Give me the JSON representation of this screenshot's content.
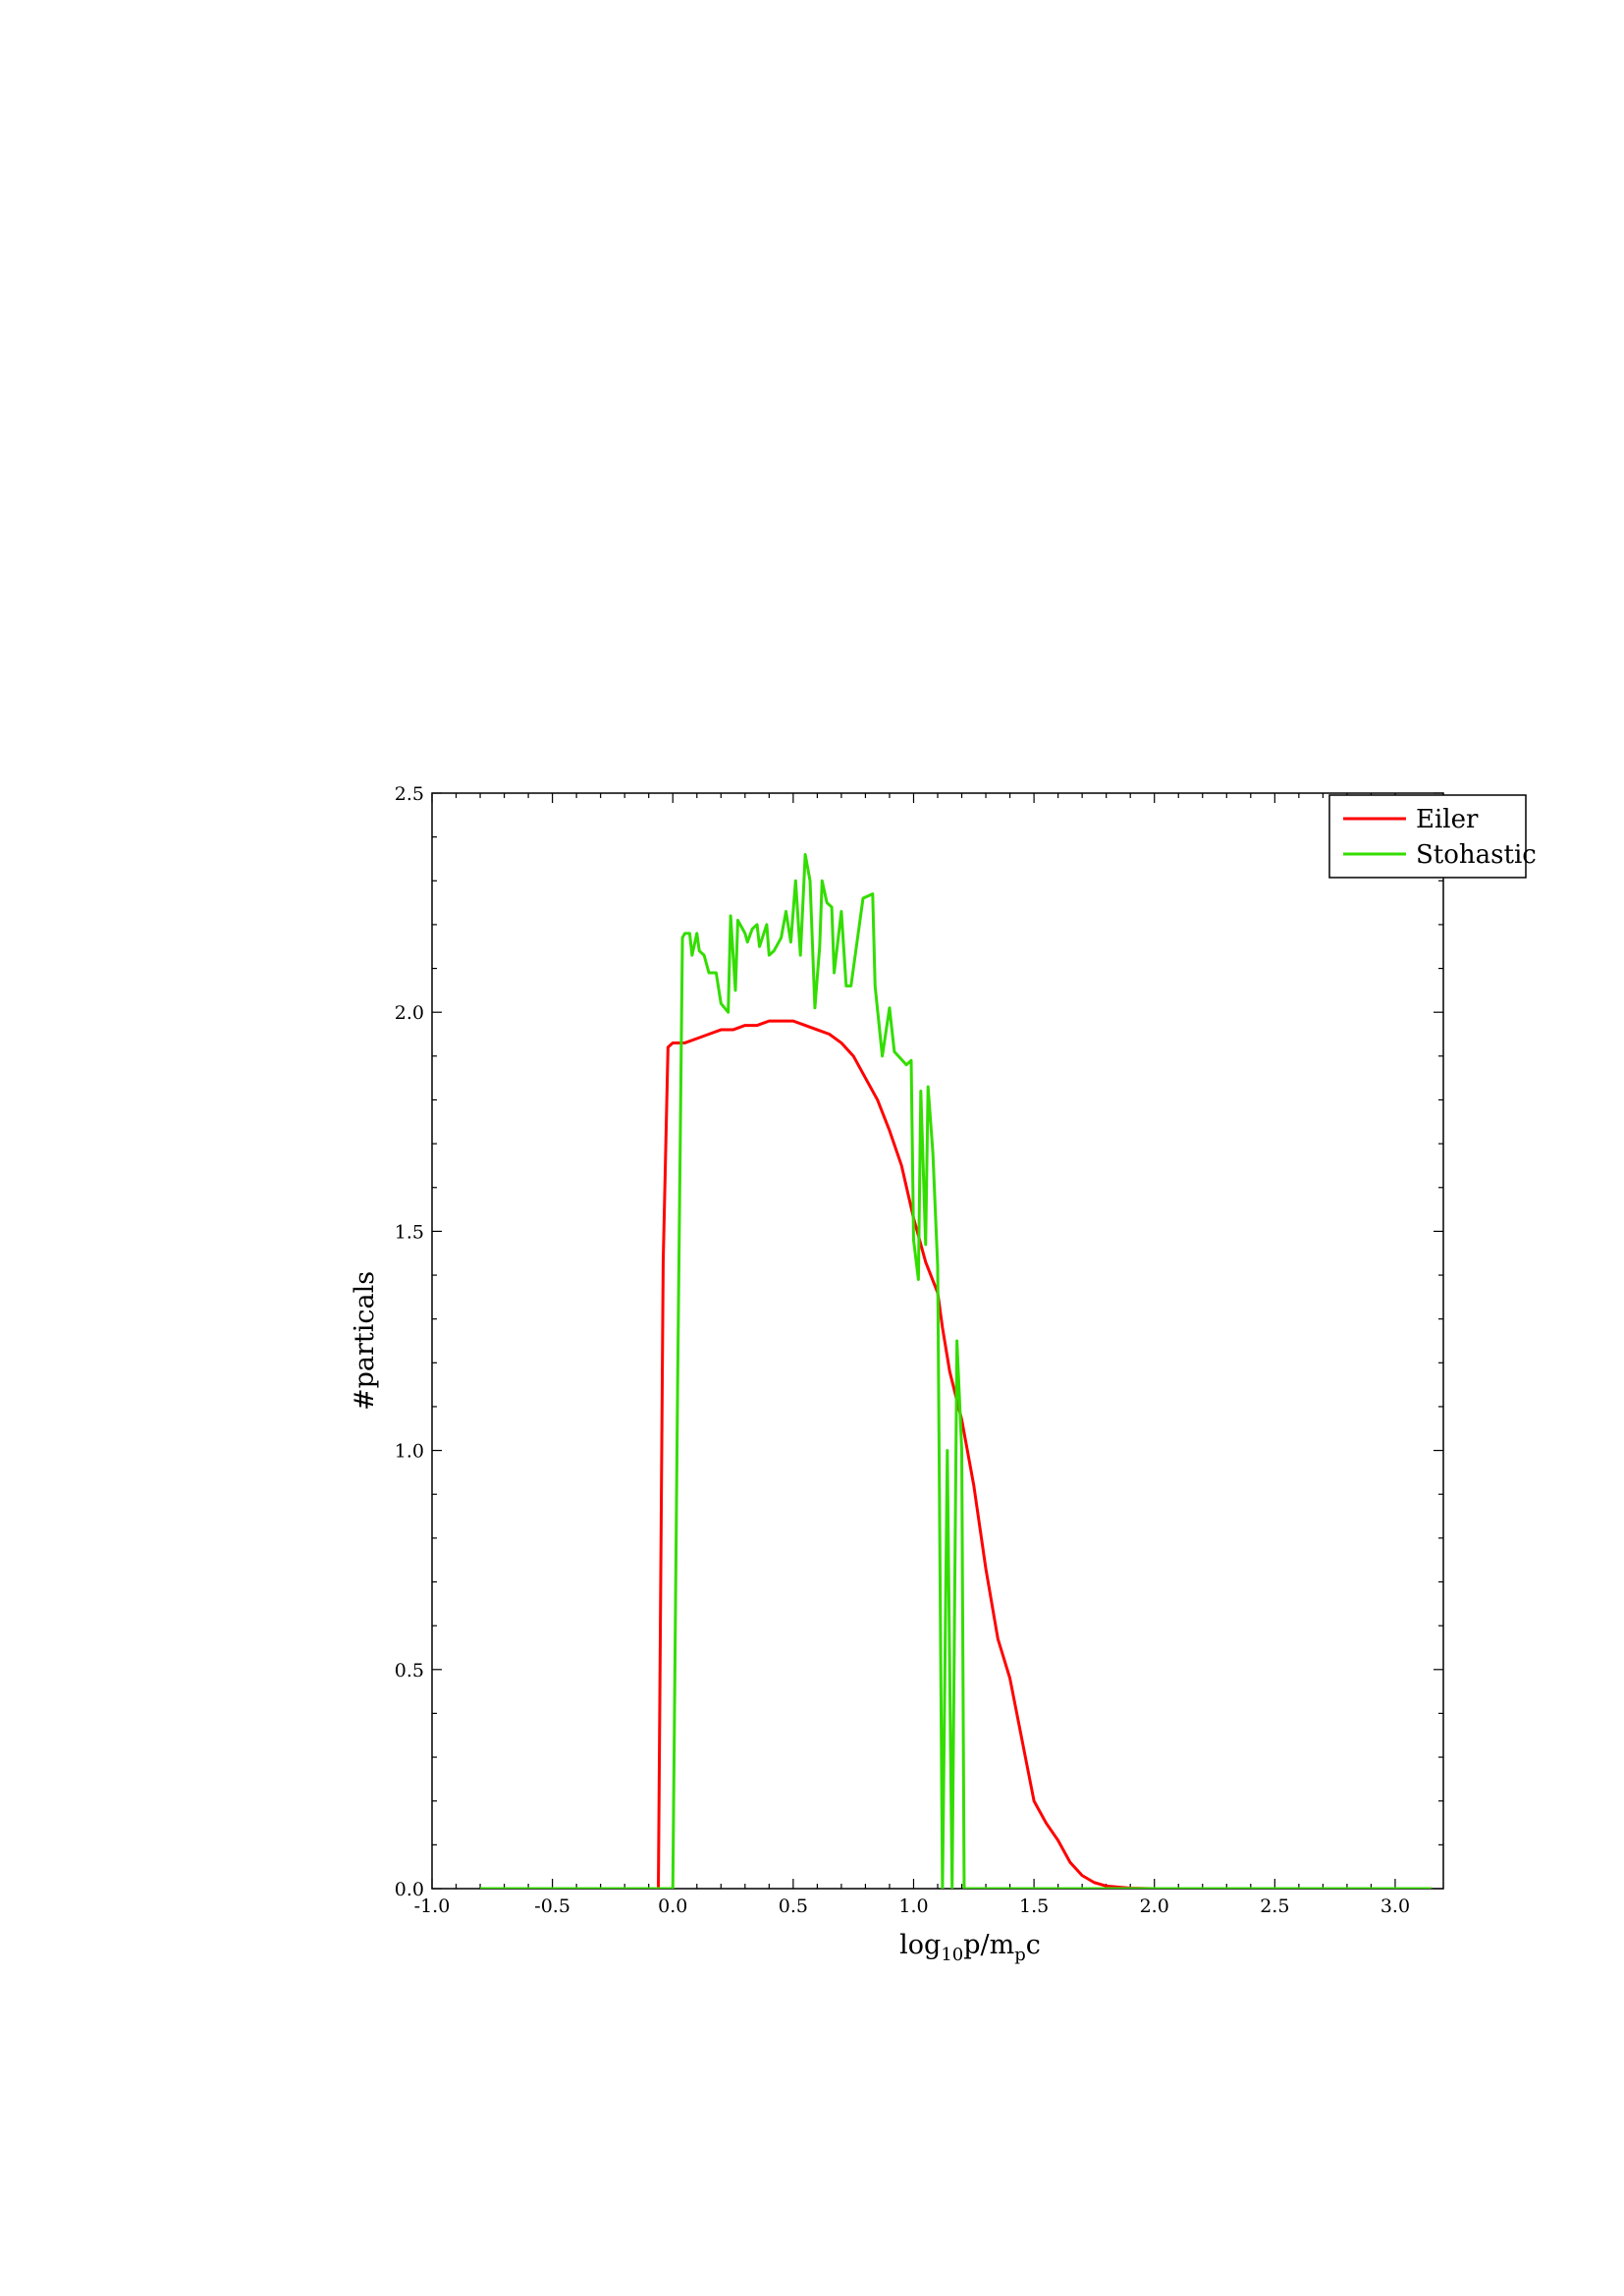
{
  "chart_data": {
    "type": "line",
    "title": "",
    "xlabel_parts": {
      "base": "log",
      "sub1": "10",
      "mid": "p/m",
      "sub2": "p",
      "end": "c"
    },
    "ylabel": "#particals",
    "xlim": [
      -1.0,
      3.2
    ],
    "ylim": [
      0.0,
      2.5
    ],
    "x_ticks": [
      -1.0,
      -0.5,
      0.0,
      0.5,
      1.0,
      1.5,
      2.0,
      2.5,
      3.0
    ],
    "x_tick_labels": [
      "-1.0",
      "-0.5",
      "0.0",
      "0.5",
      "1.0",
      "1.5",
      "2.0",
      "2.5",
      "3.0"
    ],
    "y_ticks": [
      0.0,
      0.5,
      1.0,
      1.5,
      2.0,
      2.5
    ],
    "y_tick_labels": [
      "0.0",
      "0.5",
      "1.0",
      "1.5",
      "2.0",
      "2.5"
    ],
    "grid": false,
    "legend_position": "top-right",
    "series": [
      {
        "name": "Eiler",
        "color": "#ff0000",
        "points": [
          [
            -0.8,
            0.0
          ],
          [
            -0.06,
            0.0
          ],
          [
            -0.04,
            1.43
          ],
          [
            -0.02,
            1.92
          ],
          [
            0.0,
            1.93
          ],
          [
            0.05,
            1.93
          ],
          [
            0.1,
            1.94
          ],
          [
            0.15,
            1.95
          ],
          [
            0.2,
            1.96
          ],
          [
            0.25,
            1.96
          ],
          [
            0.3,
            1.97
          ],
          [
            0.35,
            1.97
          ],
          [
            0.4,
            1.98
          ],
          [
            0.45,
            1.98
          ],
          [
            0.5,
            1.98
          ],
          [
            0.55,
            1.97
          ],
          [
            0.6,
            1.96
          ],
          [
            0.65,
            1.95
          ],
          [
            0.7,
            1.93
          ],
          [
            0.75,
            1.9
          ],
          [
            0.8,
            1.85
          ],
          [
            0.85,
            1.8
          ],
          [
            0.9,
            1.73
          ],
          [
            0.95,
            1.65
          ],
          [
            1.0,
            1.53
          ],
          [
            1.05,
            1.43
          ],
          [
            1.1,
            1.36
          ],
          [
            1.12,
            1.28
          ],
          [
            1.15,
            1.18
          ],
          [
            1.2,
            1.07
          ],
          [
            1.25,
            0.92
          ],
          [
            1.3,
            0.73
          ],
          [
            1.35,
            0.57
          ],
          [
            1.4,
            0.48
          ],
          [
            1.45,
            0.34
          ],
          [
            1.5,
            0.2
          ],
          [
            1.55,
            0.15
          ],
          [
            1.6,
            0.11
          ],
          [
            1.65,
            0.06
          ],
          [
            1.7,
            0.03
          ],
          [
            1.75,
            0.014
          ],
          [
            1.8,
            0.006
          ],
          [
            1.9,
            0.001
          ],
          [
            2.0,
            0.0
          ],
          [
            3.15,
            0.0
          ]
        ]
      },
      {
        "name": "Stohastic",
        "color": "#33dd00",
        "points": [
          [
            -0.8,
            0.0
          ],
          [
            0.0,
            0.0
          ],
          [
            0.02,
            1.15
          ],
          [
            0.04,
            2.17
          ],
          [
            0.05,
            2.18
          ],
          [
            0.07,
            2.18
          ],
          [
            0.08,
            2.13
          ],
          [
            0.1,
            2.18
          ],
          [
            0.11,
            2.14
          ],
          [
            0.13,
            2.13
          ],
          [
            0.15,
            2.09
          ],
          [
            0.18,
            2.09
          ],
          [
            0.2,
            2.02
          ],
          [
            0.23,
            2.0
          ],
          [
            0.24,
            2.22
          ],
          [
            0.26,
            2.05
          ],
          [
            0.27,
            2.21
          ],
          [
            0.3,
            2.18
          ],
          [
            0.31,
            2.16
          ],
          [
            0.33,
            2.19
          ],
          [
            0.35,
            2.2
          ],
          [
            0.36,
            2.15
          ],
          [
            0.39,
            2.2
          ],
          [
            0.4,
            2.13
          ],
          [
            0.42,
            2.14
          ],
          [
            0.45,
            2.17
          ],
          [
            0.47,
            2.23
          ],
          [
            0.49,
            2.16
          ],
          [
            0.51,
            2.3
          ],
          [
            0.53,
            2.13
          ],
          [
            0.55,
            2.36
          ],
          [
            0.57,
            2.3
          ],
          [
            0.59,
            2.01
          ],
          [
            0.61,
            2.15
          ],
          [
            0.62,
            2.3
          ],
          [
            0.64,
            2.25
          ],
          [
            0.66,
            2.24
          ],
          [
            0.67,
            2.09
          ],
          [
            0.7,
            2.23
          ],
          [
            0.72,
            2.06
          ],
          [
            0.74,
            2.06
          ],
          [
            0.77,
            2.18
          ],
          [
            0.79,
            2.26
          ],
          [
            0.83,
            2.27
          ],
          [
            0.84,
            2.06
          ],
          [
            0.87,
            1.9
          ],
          [
            0.9,
            2.01
          ],
          [
            0.92,
            1.91
          ],
          [
            0.97,
            1.88
          ],
          [
            0.99,
            1.89
          ],
          [
            1.0,
            1.48
          ],
          [
            1.02,
            1.39
          ],
          [
            1.03,
            1.82
          ],
          [
            1.05,
            1.47
          ],
          [
            1.06,
            1.83
          ],
          [
            1.08,
            1.68
          ],
          [
            1.1,
            1.42
          ],
          [
            1.12,
            0.0
          ],
          [
            1.14,
            1.0
          ],
          [
            1.16,
            0.0
          ],
          [
            1.18,
            1.25
          ],
          [
            1.2,
            1.0
          ],
          [
            1.21,
            0.0
          ],
          [
            3.15,
            0.0
          ]
        ]
      }
    ]
  }
}
